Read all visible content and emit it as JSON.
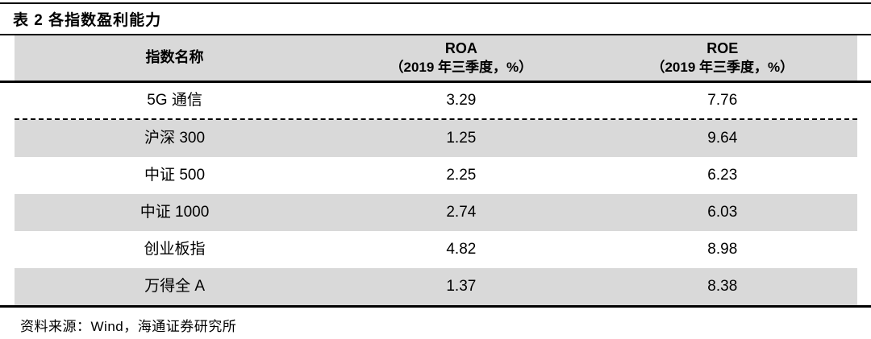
{
  "title": "表 2 各指数盈利能力",
  "table": {
    "columns": [
      {
        "label": "指数名称",
        "sub": ""
      },
      {
        "label": "ROA",
        "sub": "（2019 年三季度，%）"
      },
      {
        "label": "ROE",
        "sub": "（2019 年三季度，%）"
      }
    ],
    "rows": [
      {
        "name": "5G 通信",
        "roa": "3.29",
        "roe": "7.76"
      },
      {
        "name": "沪深 300",
        "roa": "1.25",
        "roe": "9.64"
      },
      {
        "name": "中证 500",
        "roa": "2.25",
        "roe": "6.23"
      },
      {
        "name": "中证 1000",
        "roa": "2.74",
        "roe": "6.03"
      },
      {
        "name": "创业板指",
        "roa": "4.82",
        "roe": "8.98"
      },
      {
        "name": "万得全 A",
        "roa": "1.37",
        "roe": "8.38"
      }
    ]
  },
  "footer": {
    "source": "资料来源：Wind，海通证券研究所"
  },
  "colors": {
    "row_shade": "#d9d9d9",
    "rule": "#000000",
    "text": "#000000",
    "background": "#ffffff"
  }
}
